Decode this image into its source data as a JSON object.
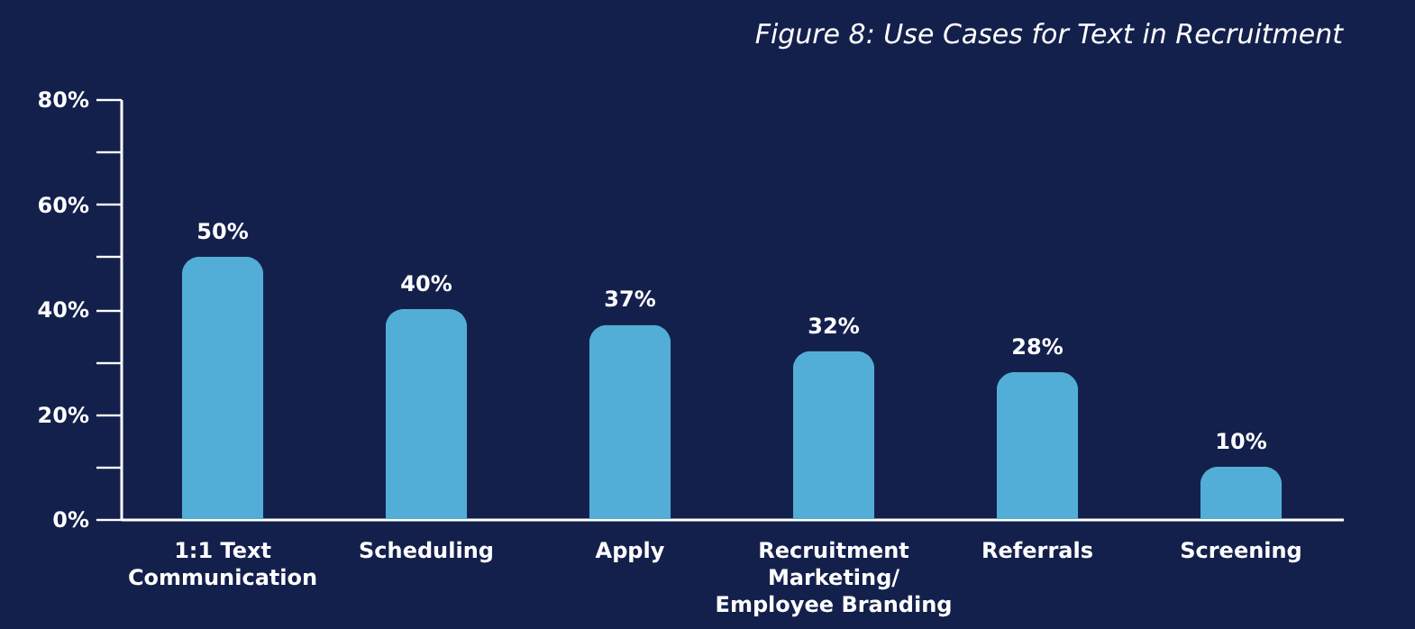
{
  "chart_data": {
    "type": "bar",
    "title": "Figure 8: Use Cases for Text in Recruitment",
    "categories": [
      "1:1 Text Communication",
      "Scheduling",
      "Apply",
      "Recruitment Marketing/ Employee Branding",
      "Referrals",
      "Screening"
    ],
    "values": [
      50,
      40,
      37,
      32,
      28,
      10
    ],
    "value_labels": [
      "50%",
      "40%",
      "37%",
      "32%",
      "28%",
      "10%"
    ],
    "color": "#52aed6",
    "ylim": [
      0,
      80
    ],
    "yticks": [
      {
        "value": 0,
        "label": "0%"
      },
      {
        "value": 10,
        "label": null
      },
      {
        "value": 20,
        "label": "20%"
      },
      {
        "value": 30,
        "label": null
      },
      {
        "value": 40,
        "label": "40%"
      },
      {
        "value": 50,
        "label": null
      },
      {
        "value": 60,
        "label": "60%"
      },
      {
        "value": 70,
        "label": null
      },
      {
        "value": 80,
        "label": "80%"
      }
    ],
    "grid": false
  }
}
